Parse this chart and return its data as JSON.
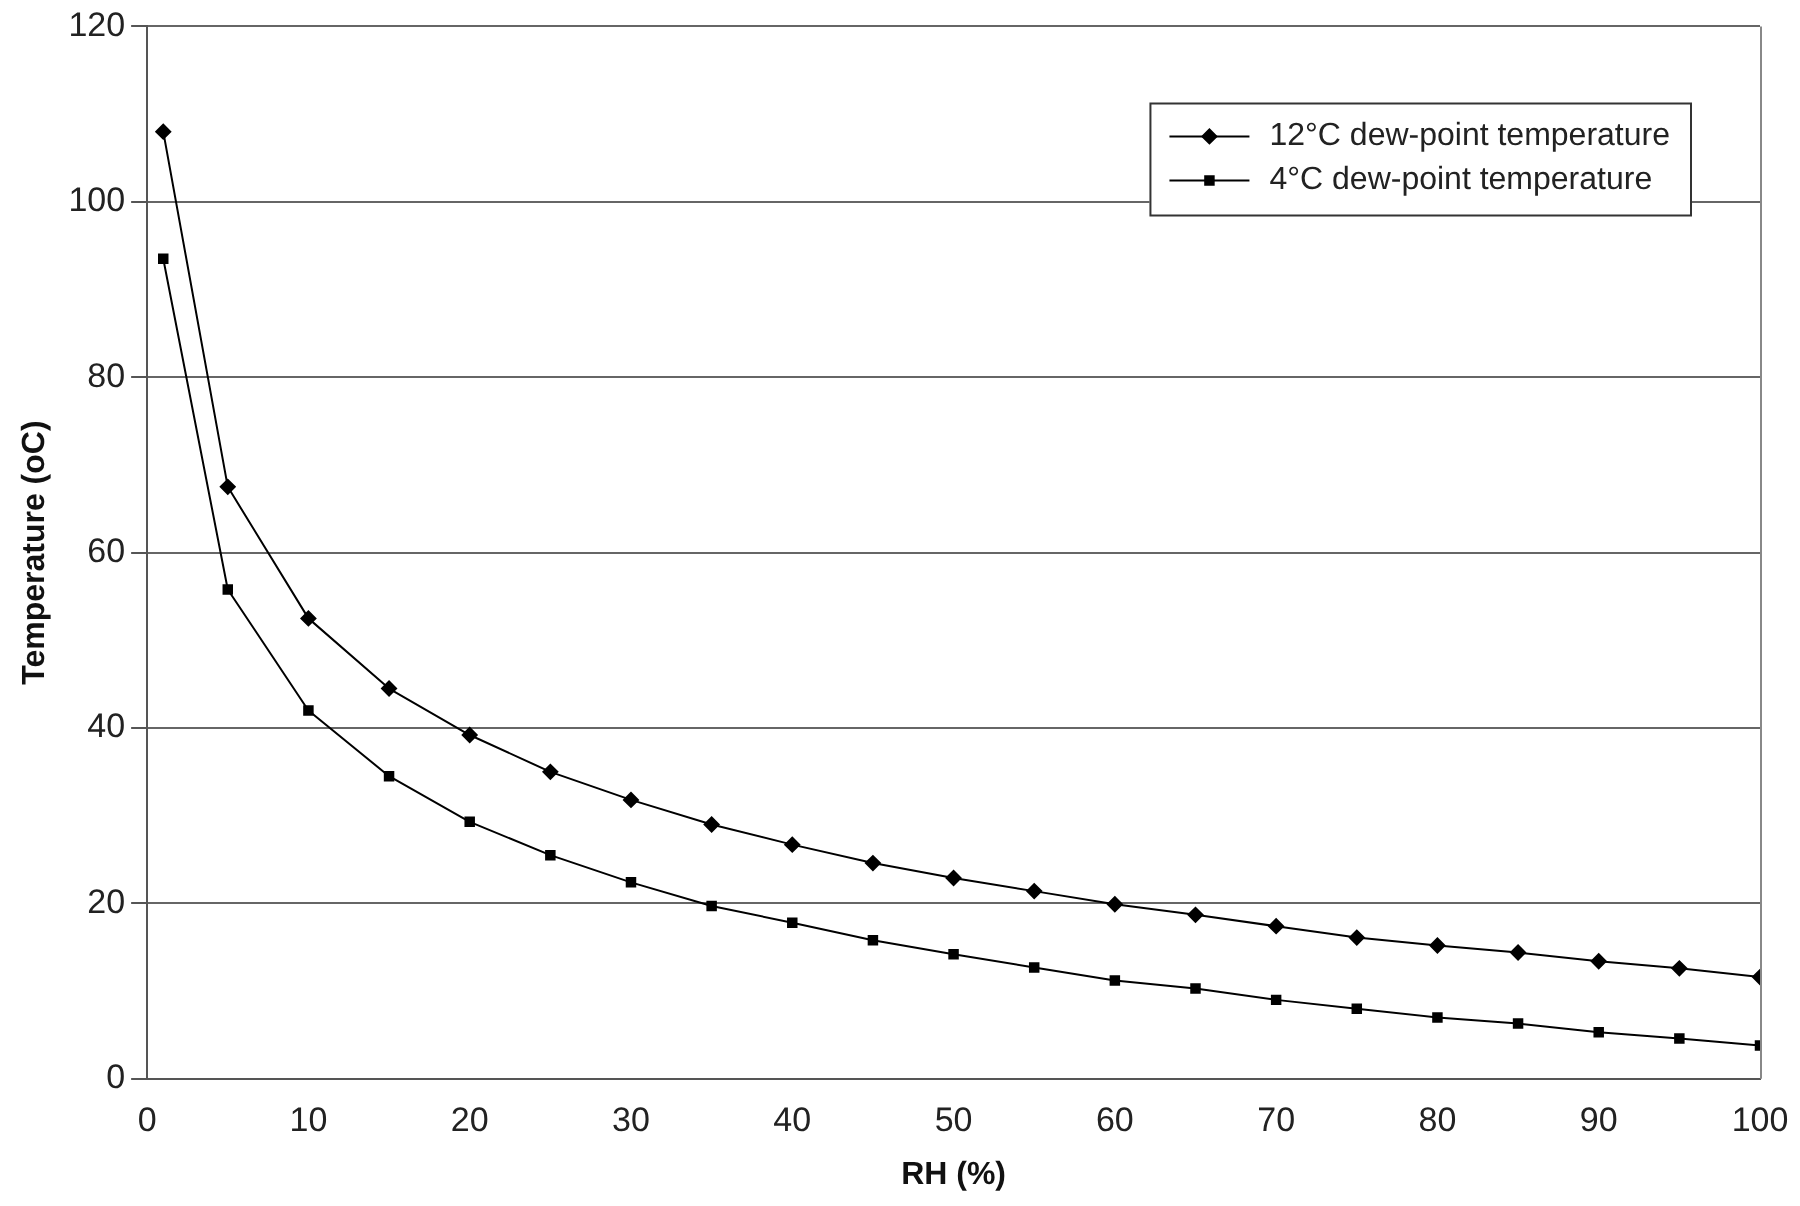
{
  "chart_data": {
    "type": "line",
    "xlabel": "RH (%)",
    "ylabel": "Temperature (oC)",
    "x": [
      1,
      5,
      10,
      15,
      20,
      25,
      30,
      35,
      40,
      45,
      50,
      55,
      60,
      65,
      70,
      75,
      80,
      85,
      90,
      95,
      100
    ],
    "series": [
      {
        "name": "12°C dew-point temperature",
        "color": "#000000",
        "marker": "diamond",
        "values": [
          108,
          67.5,
          52.5,
          44.5,
          39.2,
          35,
          31.8,
          29,
          26.7,
          24.6,
          22.9,
          21.4,
          19.9,
          18.7,
          17.4,
          16.1,
          15.2,
          14.4,
          13.4,
          12.6,
          11.6
        ]
      },
      {
        "name": "4°C dew-point temperature",
        "color": "#000000",
        "marker": "square",
        "values": [
          93.5,
          55.8,
          42,
          34.5,
          29.3,
          25.5,
          22.4,
          19.7,
          17.8,
          15.8,
          14.2,
          12.7,
          11.2,
          10.3,
          9,
          8,
          7,
          6.3,
          5.3,
          4.6,
          3.8
        ]
      }
    ],
    "xlim": [
      0,
      100
    ],
    "xticks": [
      0,
      10,
      20,
      30,
      40,
      50,
      60,
      70,
      80,
      90,
      100
    ],
    "ylim": [
      0,
      120
    ],
    "yticks": [
      0,
      20,
      40,
      60,
      80,
      100,
      120
    ],
    "grid": "y",
    "legend": "top right",
    "line_style": "solid"
  }
}
